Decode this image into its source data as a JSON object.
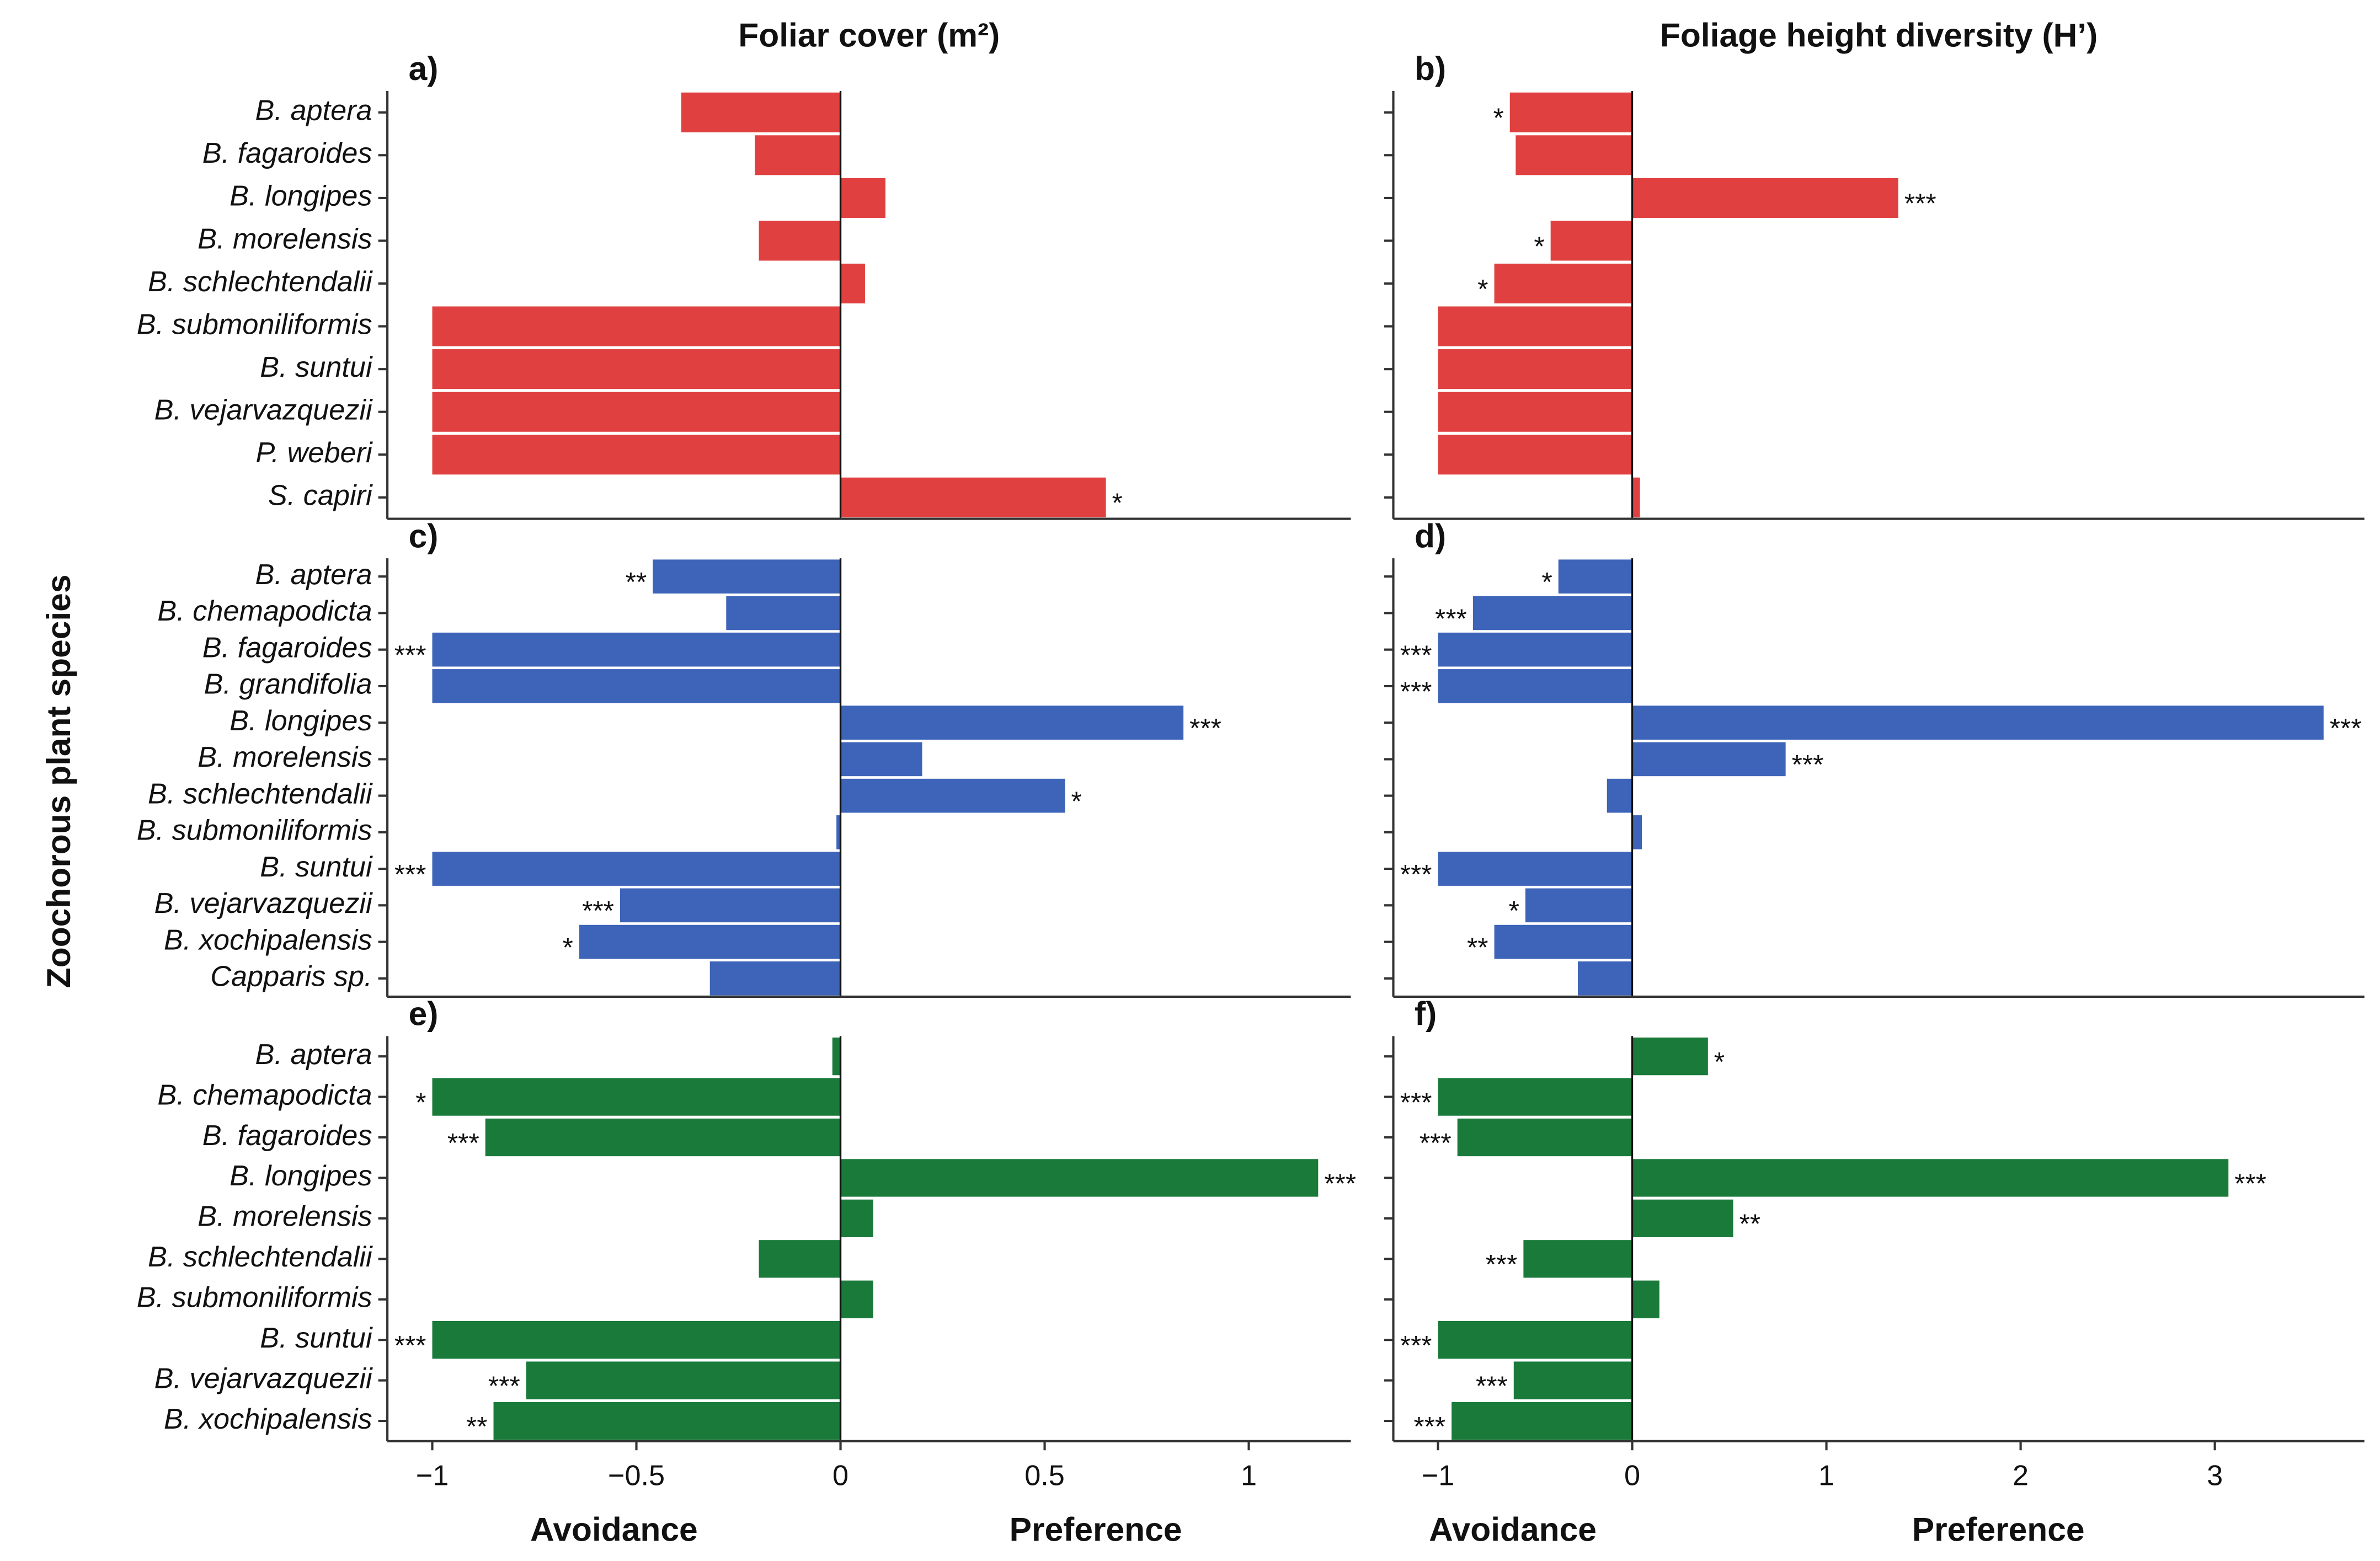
{
  "chart_data": [
    {
      "type": "bar",
      "orientation": "horizontal",
      "panel": "a)",
      "title": "Foliar cover (m²)",
      "color": "#e04040",
      "categories": [
        "B. aptera",
        "B. fagaroides",
        "B. longipes",
        "B. morelensis",
        "B. schlechtendalii",
        "B. submoniliformis",
        "B. suntui",
        "B. vejarvazquezii",
        "P. weberi",
        "S. capiri"
      ],
      "values": [
        -0.39,
        -0.21,
        0.11,
        -0.2,
        0.06,
        -1,
        -1,
        -1,
        -1,
        0.65
      ],
      "significance": [
        null,
        null,
        null,
        null,
        null,
        null,
        null,
        null,
        null,
        "*"
      ],
      "xlim": [
        -1.11,
        1.25
      ]
    },
    {
      "type": "bar",
      "orientation": "horizontal",
      "panel": "b)",
      "title": "Foliage height diversity (H’)",
      "color": "#e04040",
      "values": [
        -0.63,
        -0.6,
        1.37,
        -0.42,
        -0.71,
        -1,
        -1,
        -1,
        -1,
        0.04
      ],
      "significance": [
        "*",
        null,
        "***",
        "*",
        "*",
        null,
        null,
        null,
        null,
        null
      ],
      "xlim": [
        -1.23,
        3.77
      ]
    },
    {
      "type": "bar",
      "orientation": "horizontal",
      "panel": "c)",
      "color": "#3d64b8",
      "categories": [
        "B. aptera",
        "B. chemapodicta",
        "B. fagaroides",
        "B. grandifolia",
        "B. longipes",
        "B. morelensis",
        "B. schlechtendalii",
        "B. submoniliformis",
        "B. suntui",
        "B. vejarvazquezii",
        "B. xochipalensis",
        "Capparis sp."
      ],
      "values": [
        -0.46,
        -0.28,
        -1,
        -1,
        0.84,
        0.2,
        0.55,
        -0.01,
        -1,
        -0.54,
        -0.64,
        -0.32
      ],
      "significance": [
        "**",
        null,
        "***",
        null,
        "***",
        null,
        "*",
        null,
        "***",
        "***",
        "*",
        null
      ],
      "xlim": [
        -1.11,
        1.25
      ]
    },
    {
      "type": "bar",
      "orientation": "horizontal",
      "panel": "d)",
      "color": "#3d64b8",
      "values": [
        -0.38,
        -0.82,
        -1,
        -1,
        3.56,
        0.79,
        -0.13,
        0.05,
        -1,
        -0.55,
        -0.71,
        -0.28
      ],
      "significance": [
        "*",
        "***",
        "***",
        "***",
        "***",
        "***",
        null,
        null,
        "***",
        "*",
        "**",
        null
      ],
      "xlim": [
        -1.23,
        3.77
      ]
    },
    {
      "type": "bar",
      "orientation": "horizontal",
      "panel": "e)",
      "color": "#1a7a3a",
      "categories": [
        "B. aptera",
        "B. chemapodicta",
        "B. fagaroides",
        "B. longipes",
        "B. morelensis",
        "B. schlechtendalii",
        "B. submoniliformis",
        "B. suntui",
        "B. vejarvazquezii",
        "B. xochipalensis"
      ],
      "values": [
        -0.02,
        -1,
        -0.87,
        1.17,
        0.08,
        -0.2,
        0.08,
        -1,
        -0.77,
        -0.85
      ],
      "significance": [
        null,
        "*",
        "***",
        "***",
        null,
        null,
        null,
        "***",
        "***",
        "**"
      ],
      "xlim": [
        -1.11,
        1.25
      ],
      "xticks": [
        {
          "value": -1,
          "label": "−1"
        },
        {
          "value": -0.5,
          "label": "−0.5"
        },
        0,
        0.5,
        1
      ],
      "xlabels": [
        "Avoidance",
        "Preference"
      ]
    },
    {
      "type": "bar",
      "orientation": "horizontal",
      "panel": "f)",
      "color": "#1a7a3a",
      "values": [
        0.39,
        -1,
        -0.9,
        3.07,
        0.52,
        -0.56,
        0.14,
        -1,
        -0.61,
        -0.93
      ],
      "significance": [
        "*",
        "***",
        "***",
        "***",
        "**",
        "***",
        null,
        "***",
        "***",
        "***"
      ],
      "xlim": [
        -1.23,
        3.77
      ],
      "xticks": [
        {
          "value": -1,
          "label": "−1"
        },
        0,
        1,
        2,
        3
      ],
      "xlabels": [
        "Avoidance",
        "Preference"
      ]
    }
  ],
  "ylabel": "Zoochorous plant species"
}
